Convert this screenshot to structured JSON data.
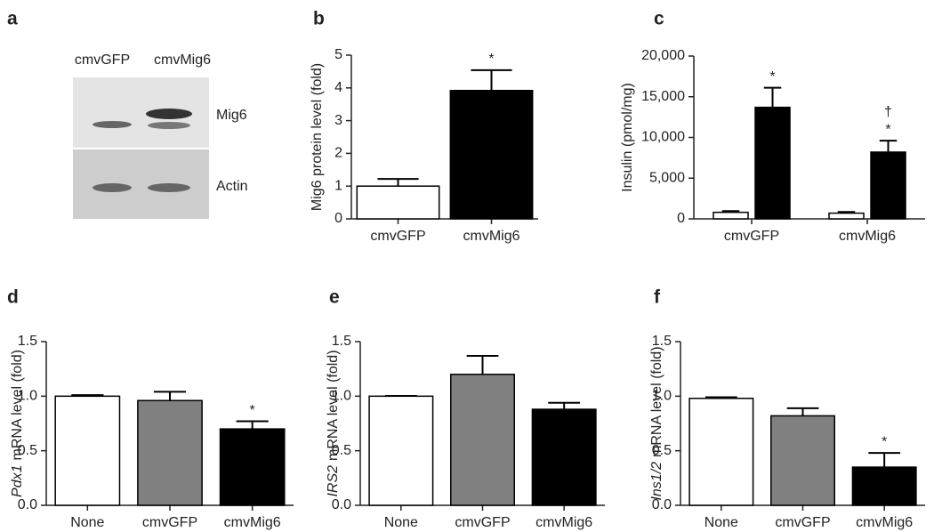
{
  "blot": {
    "panel": "a",
    "lanes": [
      "cmvGFP",
      "cmvMig6"
    ],
    "bands": [
      "Mig6",
      "Actin"
    ]
  },
  "chart_data": [
    {
      "type": "bar",
      "panel": "b",
      "ylabel": "Mig6 protein level (fold)",
      "categories": [
        "cmvGFP",
        "cmvMig6"
      ],
      "values": [
        1.0,
        3.92
      ],
      "errors": [
        0.22,
        0.62
      ],
      "colors": [
        "#ffffff",
        "#000000"
      ],
      "marks": [
        null,
        "*"
      ],
      "ylim": [
        0,
        5
      ],
      "yticks": [
        0,
        1,
        2,
        3,
        4,
        5
      ]
    },
    {
      "type": "grouped_bar",
      "panel": "c",
      "ylabel": "Insulin (pmol/mg)",
      "categories": [
        "cmvGFP",
        "cmvMig6"
      ],
      "series": [
        {
          "color": "#ffffff",
          "values": [
            800,
            700
          ],
          "errors": [
            150,
            150
          ]
        },
        {
          "color": "#000000",
          "values": [
            13700,
            8200
          ],
          "errors": [
            2400,
            1400
          ],
          "marks": [
            [
              "*"
            ],
            [
              "†",
              "*"
            ]
          ]
        }
      ],
      "ylim": [
        0,
        20000
      ],
      "yticks": [
        0,
        {
          "value": 5000,
          "label": "5,000"
        },
        {
          "value": 10000,
          "label": "10,000"
        },
        {
          "value": 15000,
          "label": "15,000"
        },
        {
          "value": 20000,
          "label": "20,000"
        }
      ]
    },
    {
      "type": "bar",
      "panel": "d",
      "ylabel_gene": "Pdx1",
      "ylabel": "mRNA level (fold)",
      "categories": [
        "None",
        "cmvGFP",
        "cmvMig6"
      ],
      "values": [
        1.0,
        0.96,
        0.7
      ],
      "errors": [
        0.01,
        0.08,
        0.07
      ],
      "colors": [
        "#ffffff",
        "#808080",
        "#000000"
      ],
      "marks": [
        null,
        null,
        "*"
      ],
      "ylim": [
        0,
        1.5
      ],
      "yticks": [
        {
          "value": 0,
          "label": "0.0"
        },
        {
          "value": 0.5,
          "label": "0.5"
        },
        {
          "value": 1,
          "label": "1.0"
        },
        {
          "value": 1.5,
          "label": "1.5"
        }
      ]
    },
    {
      "type": "bar",
      "panel": "e",
      "ylabel_gene": "IRS2",
      "ylabel": "mRNA level (fold)",
      "categories": [
        "None",
        "cmvGFP",
        "cmvMig6"
      ],
      "values": [
        1.0,
        1.2,
        0.88
      ],
      "errors": [
        0.003,
        0.17,
        0.06
      ],
      "colors": [
        "#ffffff",
        "#808080",
        "#000000"
      ],
      "ylim": [
        0,
        1.5
      ],
      "yticks": [
        {
          "value": 0,
          "label": "0.0"
        },
        {
          "value": 0.5,
          "label": "0.5"
        },
        {
          "value": 1,
          "label": "1.0"
        },
        {
          "value": 1.5,
          "label": "1.5"
        }
      ]
    },
    {
      "type": "bar",
      "panel": "f",
      "ylabel_gene": "Ins1/2",
      "ylabel": "mRNA level (fold)",
      "categories": [
        "None",
        "cmvGFP",
        "cmvMig6"
      ],
      "values": [
        0.98,
        0.82,
        0.35
      ],
      "errors": [
        0.01,
        0.07,
        0.13
      ],
      "colors": [
        "#ffffff",
        "#808080",
        "#000000"
      ],
      "marks": [
        null,
        null,
        "*"
      ],
      "ylim": [
        0,
        1.5
      ],
      "yticks": [
        {
          "value": 0,
          "label": "0.0"
        },
        {
          "value": 0.5,
          "label": "0.5"
        },
        {
          "value": 1,
          "label": "1.0"
        },
        {
          "value": 1.5,
          "label": "1.5"
        }
      ]
    }
  ]
}
